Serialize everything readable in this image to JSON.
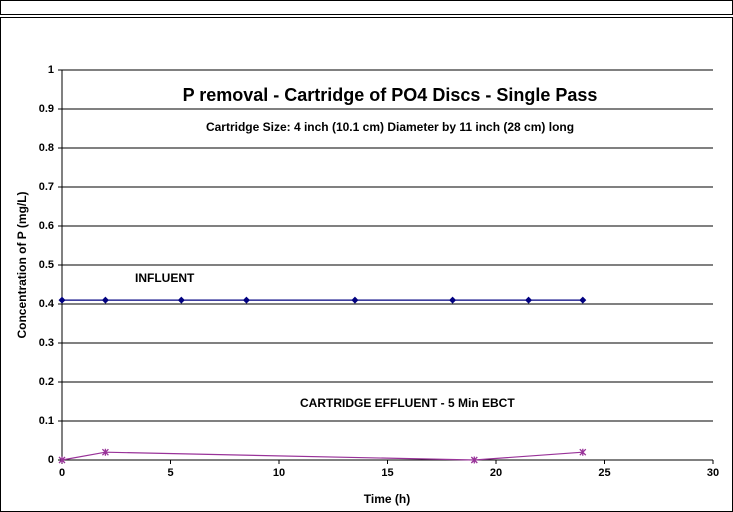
{
  "chart_data": {
    "type": "line",
    "title": "P removal - Cartridge of PO4 Discs - Single Pass",
    "subtitle": "Cartridge Size: 4 inch (10.1 cm) Diameter by 11 inch (28 cm) long",
    "x_label": "Time (h)",
    "y_label": "Concentration of P (mg/L)",
    "xlim": [
      0,
      30
    ],
    "xticks": [
      0,
      5,
      10,
      15,
      20,
      25,
      30
    ],
    "ylim": [
      0,
      1
    ],
    "yticks": [
      0,
      0.1,
      0.2,
      0.3,
      0.4,
      0.5,
      0.6,
      0.7,
      0.8,
      0.9,
      1
    ],
    "grid": true,
    "series": [
      {
        "name": "INFLUENT",
        "color": "#000080",
        "marker": "diamond",
        "x": [
          0,
          2,
          5.5,
          8.5,
          13.5,
          18,
          21.5,
          24
        ],
        "values": [
          0.41,
          0.41,
          0.41,
          0.41,
          0.41,
          0.41,
          0.41,
          0.41
        ]
      },
      {
        "name": "CARTRIDGE EFFLUENT - 5 Min EBCT",
        "color": "#993399",
        "marker": "star",
        "x": [
          0,
          2,
          19,
          24
        ],
        "values": [
          0,
          0.02,
          0,
          0.02
        ]
      }
    ]
  }
}
